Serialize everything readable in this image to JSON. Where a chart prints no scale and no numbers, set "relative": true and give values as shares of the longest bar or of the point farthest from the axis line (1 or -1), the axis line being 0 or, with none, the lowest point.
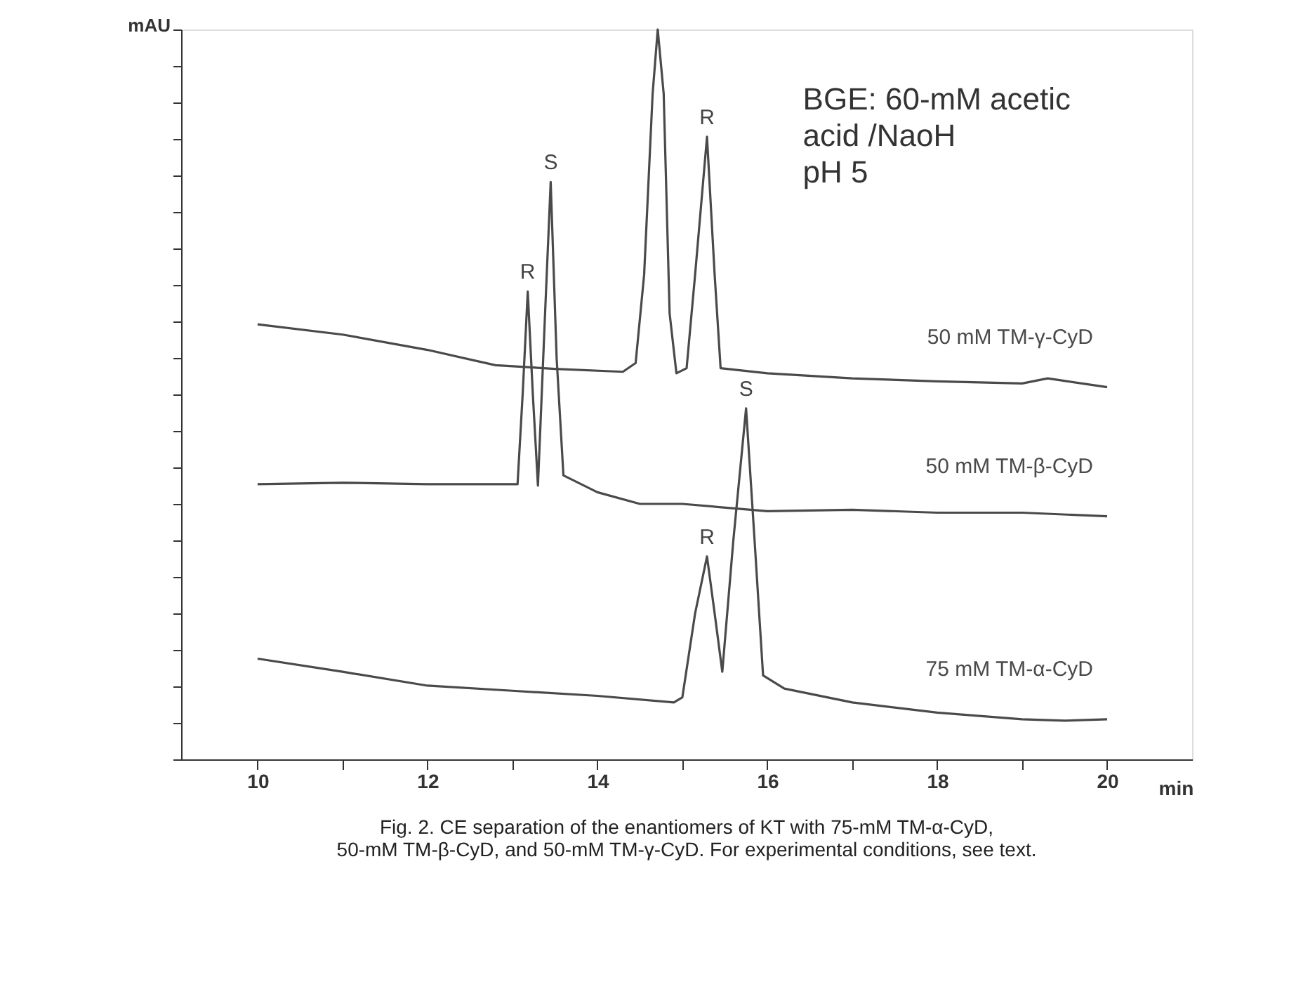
{
  "chart_data": {
    "type": "line",
    "relative": true,
    "ylabel": "mAU",
    "xlabel": "min",
    "xlim": [
      9.1,
      21.0
    ],
    "xticks": [
      10,
      {
        "value": 11,
        "label": null
      },
      12,
      {
        "value": 13,
        "label": null
      },
      14,
      {
        "value": 15,
        "label": null
      },
      16,
      {
        "value": 17,
        "label": null
      },
      18,
      {
        "value": 19,
        "label": null
      },
      20
    ],
    "tick_labels": "x",
    "grid": false,
    "marker": "none",
    "line_style": "solid",
    "series": [
      {
        "name": "50 mM TM-γ-CyD",
        "color": "#4a4a4a",
        "x": [
          10.0,
          11.0,
          12.0,
          12.8,
          13.5,
          14.3,
          14.45,
          14.55,
          14.65,
          14.71,
          14.78,
          14.85,
          14.93,
          15.05,
          15.15,
          15.29,
          15.38,
          15.45,
          16.0,
          17.0,
          18.0,
          19.0,
          19.3,
          20.0
        ],
        "values": [
          0.596,
          0.582,
          0.561,
          0.54,
          0.535,
          0.531,
          0.543,
          0.664,
          0.912,
          1.0,
          0.912,
          0.611,
          0.529,
          0.536,
          0.664,
          0.853,
          0.664,
          0.536,
          0.529,
          0.522,
          0.518,
          0.515,
          0.522,
          0.51
        ]
      },
      {
        "name": "50 mM TM-β-CyD",
        "color": "#4a4a4a",
        "x": [
          10.0,
          11.0,
          12.0,
          13.06,
          13.12,
          13.18,
          13.24,
          13.3,
          13.38,
          13.45,
          13.52,
          13.6,
          14.0,
          14.5,
          15.0,
          16.0,
          17.0,
          18.0,
          19.0,
          20.0
        ],
        "values": [
          0.377,
          0.379,
          0.377,
          0.377,
          0.5,
          0.641,
          0.5,
          0.375,
          0.6,
          0.791,
          0.55,
          0.389,
          0.366,
          0.35,
          0.35,
          0.34,
          0.342,
          0.338,
          0.338,
          0.333
        ]
      },
      {
        "name": "75 mM TM-α-CyD",
        "color": "#4a4a4a",
        "x": [
          10.0,
          11.0,
          12.0,
          13.0,
          14.0,
          14.9,
          15.0,
          15.15,
          15.29,
          15.38,
          15.47,
          15.6,
          15.75,
          15.85,
          15.95,
          16.2,
          17.0,
          18.0,
          19.0,
          19.5,
          20.0
        ],
        "values": [
          0.138,
          0.12,
          0.101,
          0.094,
          0.087,
          0.078,
          0.085,
          0.2,
          0.278,
          0.2,
          0.12,
          0.3,
          0.481,
          0.3,
          0.115,
          0.097,
          0.078,
          0.064,
          0.055,
          0.053,
          0.055
        ]
      }
    ],
    "annotations": [
      {
        "text": "R",
        "x": 15.29,
        "y": 0.853
      },
      {
        "text": "R",
        "x": 13.18,
        "y": 0.641
      },
      {
        "text": "S",
        "x": 13.45,
        "y": 0.791
      },
      {
        "text": "R",
        "x": 15.29,
        "y": 0.278
      },
      {
        "text": "S",
        "x": 15.75,
        "y": 0.481
      },
      "BGE: 60-mM acetic\nacid /NaoH\npH 5",
      "Fig. 2. CE separation of the enantiomers of KT with 75-mM TM-α-CyD,\n50-mM TM-β-CyD, and 50-mM TM-γ-CyD. For experimental conditions, see text."
    ]
  }
}
